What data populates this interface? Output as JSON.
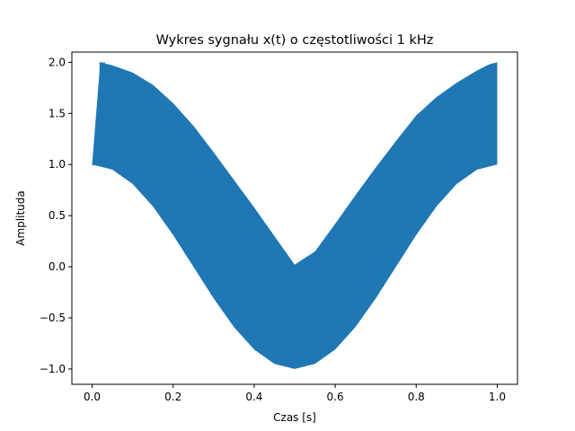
{
  "chart_data": {
    "type": "line",
    "title": "Wykres sygnału x(t) o częstotliwości 1 kHz",
    "xlabel": "Czas [s]",
    "ylabel": "Amplituda",
    "xlim": [
      -0.05,
      1.05
    ],
    "ylim": [
      -1.15,
      2.1
    ],
    "xticks": [
      0.0,
      0.2,
      0.4,
      0.6,
      0.8,
      1.0
    ],
    "xtick_labels": [
      "0.0",
      "0.2",
      "0.4",
      "0.6",
      "0.8",
      "1.0"
    ],
    "yticks": [
      -1.0,
      -0.5,
      0.0,
      0.5,
      1.0,
      1.5,
      2.0
    ],
    "ytick_labels": [
      "−1.0",
      "−0.5",
      "0.0",
      "0.5",
      "1.0",
      "1.5",
      "2.0"
    ],
    "grid": false,
    "line_color": "#1f77b4",
    "series": [
      {
        "name": "",
        "envelope_upper_x": [
          0.0,
          0.02,
          0.05,
          0.1,
          0.15,
          0.2,
          0.25,
          0.3,
          0.35,
          0.4,
          0.45,
          0.5,
          0.55,
          0.6,
          0.65,
          0.7,
          0.75,
          0.8,
          0.85,
          0.9,
          0.95,
          0.98,
          1.0
        ],
        "envelope_upper_y": [
          1.0,
          2.0,
          1.97,
          1.9,
          1.78,
          1.6,
          1.38,
          1.12,
          0.85,
          0.58,
          0.3,
          0.02,
          0.15,
          0.42,
          0.7,
          0.97,
          1.23,
          1.48,
          1.66,
          1.8,
          1.92,
          1.98,
          2.0
        ],
        "envelope_lower_x": [
          0.0,
          0.05,
          0.1,
          0.15,
          0.2,
          0.25,
          0.3,
          0.35,
          0.4,
          0.45,
          0.5,
          0.55,
          0.6,
          0.65,
          0.7,
          0.75,
          0.8,
          0.85,
          0.9,
          0.95,
          1.0
        ],
        "envelope_lower_y": [
          1.0,
          0.95,
          0.81,
          0.59,
          0.31,
          0.0,
          -0.31,
          -0.59,
          -0.81,
          -0.95,
          -1.0,
          -0.95,
          -0.81,
          -0.59,
          -0.31,
          0.0,
          0.31,
          0.59,
          0.81,
          0.95,
          1.0
        ]
      }
    ]
  }
}
